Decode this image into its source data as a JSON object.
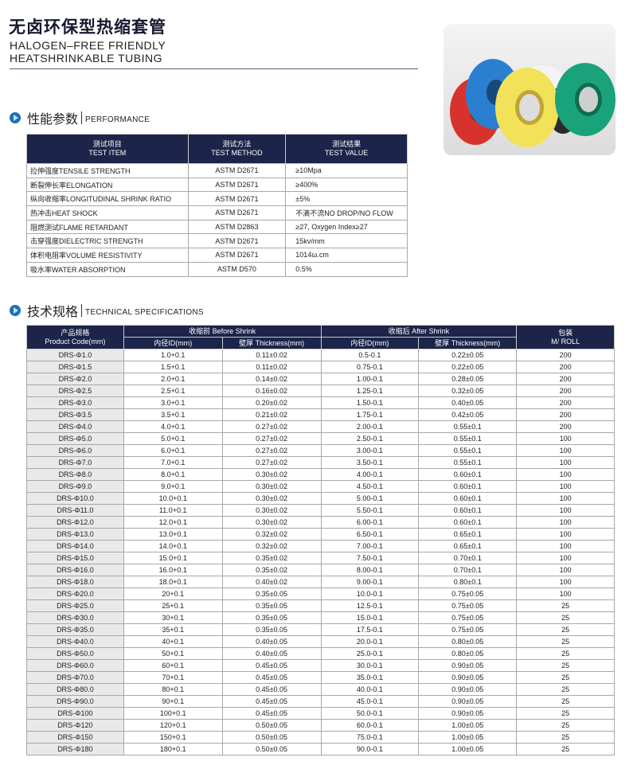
{
  "header": {
    "title_cn": "无卤环保型热缩套管",
    "title_en_1": "HALOGEN–FREE FRIENDLY",
    "title_en_2": "HEATSHRINKABLE TUBING"
  },
  "photo": {
    "description_colors": [
      "#d8322c",
      "#2a7fd0",
      "#f1e25a",
      "#1aa37a",
      "#333333",
      "#f4f4f4"
    ]
  },
  "performance": {
    "heading_cn": "性能参数",
    "heading_en": "PERFORMANCE",
    "columns": [
      {
        "cn": "测试项目",
        "en": "TEST ITEM"
      },
      {
        "cn": "测试方法",
        "en": "TEST METHOD"
      },
      {
        "cn": "测试结果",
        "en": "TEST VALUE"
      }
    ],
    "rows": [
      [
        "拉伸强度TENSILE STRENGTH",
        "ASTM D2671",
        "≥10Mpa"
      ],
      [
        "断裂伸长率ELONGATION",
        "ASTM D2671",
        "≥400%"
      ],
      [
        "纵向收缩率LONGITUDINAL SHRINK RATIO",
        "ASTM D2671",
        "±5%"
      ],
      [
        "热冲击HEAT SHOCK",
        "ASTM D2671",
        "不滴不流NO DROP/NO FLOW"
      ],
      [
        "阻燃测试FLAME RETARDANT",
        "ASTM D2863",
        "≥27, Oxygen Index≥27"
      ],
      [
        "击穿强度DIELECTRIC STRENGTH",
        "ASTM D2671",
        "15kv/mm"
      ],
      [
        "体积电阻率VOLUME RESISTIVITY",
        "ASTM D2671",
        "1014ω.cm"
      ],
      [
        "吸水率WATER ABSORPTION",
        "ASTM D570",
        "0.5%"
      ]
    ]
  },
  "specs": {
    "heading_cn": "技术规格",
    "heading_en": "TECHNICAL SPECIFICATIONS",
    "header": {
      "code_cn": "产品规格",
      "code_en": "Product Code(mm)",
      "before": "收缩前 Before Shrink",
      "after": "收缩后 After Shrink",
      "pack_cn": "包装",
      "pack_en": "M/ ROLL",
      "id": "内径ID(mm)",
      "thickness": "壁厚 Thickness(mm)"
    },
    "rows": [
      [
        "DRS-Φ1.0",
        "1.0+0.1",
        "0.11±0.02",
        "0.5-0.1",
        "0.22±0.05",
        "200"
      ],
      [
        "DRS-Φ1.5",
        "1.5+0.1",
        "0.11±0.02",
        "0.75-0.1",
        "0.22±0.05",
        "200"
      ],
      [
        "DRS-Φ2.0",
        "2.0+0.1",
        "0.14±0.02",
        "1.00-0.1",
        "0.28±0.05",
        "200"
      ],
      [
        "DRS-Φ2.5",
        "2.5+0.1",
        "0.16±0.02",
        "1.25-0.1",
        "0.32±0.05",
        "200"
      ],
      [
        "DRS-Φ3.0",
        "3.0+0.1",
        "0.20±0.02",
        "1.50-0.1",
        "0.40±0.05",
        "200"
      ],
      [
        "DRS-Φ3.5",
        "3.5+0.1",
        "0.21±0.02",
        "1.75-0.1",
        "0.42±0.05",
        "200"
      ],
      [
        "DRS-Φ4.0",
        "4.0+0.1",
        "0.27±0.02",
        "2.00-0.1",
        "0.55±0.1",
        "200"
      ],
      [
        "DRS-Φ5.0",
        "5.0+0.1",
        "0.27±0.02",
        "2.50-0.1",
        "0.55±0.1",
        "100"
      ],
      [
        "DRS-Φ6.0",
        "6.0+0.1",
        "0.27±0.02",
        "3.00-0.1",
        "0.55±0.1",
        "100"
      ],
      [
        "DRS-Φ7.0",
        "7.0+0.1",
        "0.27±0.02",
        "3.50-0.1",
        "0.55±0.1",
        "100"
      ],
      [
        "DRS-Φ8.0",
        "8.0+0.1",
        "0.30±0.02",
        "4.00-0.1",
        "0.60±0.1",
        "100"
      ],
      [
        "DRS-Φ9.0",
        "9.0+0.1",
        "0.30±0.02",
        "4.50-0.1",
        "0.60±0.1",
        "100"
      ],
      [
        "DRS-Φ10.0",
        "10.0+0.1",
        "0.30±0.02",
        "5.00-0.1",
        "0.60±0.1",
        "100"
      ],
      [
        "DRS-Φ11.0",
        "11.0+0.1",
        "0.30±0.02",
        "5.50-0.1",
        "0.60±0.1",
        "100"
      ],
      [
        "DRS-Φ12.0",
        "12.0+0.1",
        "0.30±0.02",
        "6.00-0.1",
        "0.60±0.1",
        "100"
      ],
      [
        "DRS-Φ13.0",
        "13.0+0.1",
        "0.32±0.02",
        "6.50-0.1",
        "0.65±0.1",
        "100"
      ],
      [
        "DRS-Φ14.0",
        "14.0+0.1",
        "0.32±0.02",
        "7.00-0.1",
        "0.65±0.1",
        "100"
      ],
      [
        "DRS-Φ15.0",
        "15.0+0.1",
        "0.35±0.02",
        "7.50-0.1",
        "0.70±0.1",
        "100"
      ],
      [
        "DRS-Φ16.0",
        "16.0+0.1",
        "0.35±0.02",
        "8.00-0.1",
        "0.70±0.1",
        "100"
      ],
      [
        "DRS-Φ18.0",
        "18.0+0.1",
        "0.40±0.02",
        "9.00-0.1",
        "0.80±0.1",
        "100"
      ],
      [
        "DRS-Φ20.0",
        "20+0.1",
        "0.35±0.05",
        "10.0-0.1",
        "0.75±0.05",
        "100"
      ],
      [
        "DRS-Φ25.0",
        "25+0.1",
        "0.35±0.05",
        "12.5-0.1",
        "0.75±0.05",
        "25"
      ],
      [
        "DRS-Φ30.0",
        "30+0.1",
        "0.35±0.05",
        "15.0-0.1",
        "0.75±0.05",
        "25"
      ],
      [
        "DRS-Φ35.0",
        "35+0.1",
        "0.35±0.05",
        "17.5-0.1",
        "0.75±0.05",
        "25"
      ],
      [
        "DRS-Φ40.0",
        "40+0.1",
        "0.40±0.05",
        "20.0-0.1",
        "0.80±0.05",
        "25"
      ],
      [
        "DRS-Φ50.0",
        "50+0.1",
        "0.40±0.05",
        "25.0-0.1",
        "0.80±0.05",
        "25"
      ],
      [
        "DRS-Φ60.0",
        "60+0.1",
        "0.45±0.05",
        "30.0-0.1",
        "0.90±0.05",
        "25"
      ],
      [
        "DRS-Φ70.0",
        "70+0.1",
        "0.45±0.05",
        "35.0-0.1",
        "0.90±0.05",
        "25"
      ],
      [
        "DRS-Φ80.0",
        "80+0.1",
        "0.45±0.05",
        "40.0-0.1",
        "0.90±0.05",
        "25"
      ],
      [
        "DRS-Φ90.0",
        "90+0.1",
        "0.45±0.05",
        "45.0-0.1",
        "0.90±0.05",
        "25"
      ],
      [
        "DRS-Φ100",
        "100+0.1",
        "0.45±0.05",
        "50.0-0.1",
        "0.90±0.05",
        "25"
      ],
      [
        "DRS-Φ120",
        "120+0.1",
        "0.50±0.05",
        "60.0-0.1",
        "1.00±0.05",
        "25"
      ],
      [
        "DRS-Φ150",
        "150+0.1",
        "0.50±0.05",
        "75.0-0.1",
        "1.00±0.05",
        "25"
      ],
      [
        "DRS-Φ180",
        "180+0.1",
        "0.50±0.05",
        "90.0-0.1",
        "1.00±0.05",
        "25"
      ]
    ]
  }
}
